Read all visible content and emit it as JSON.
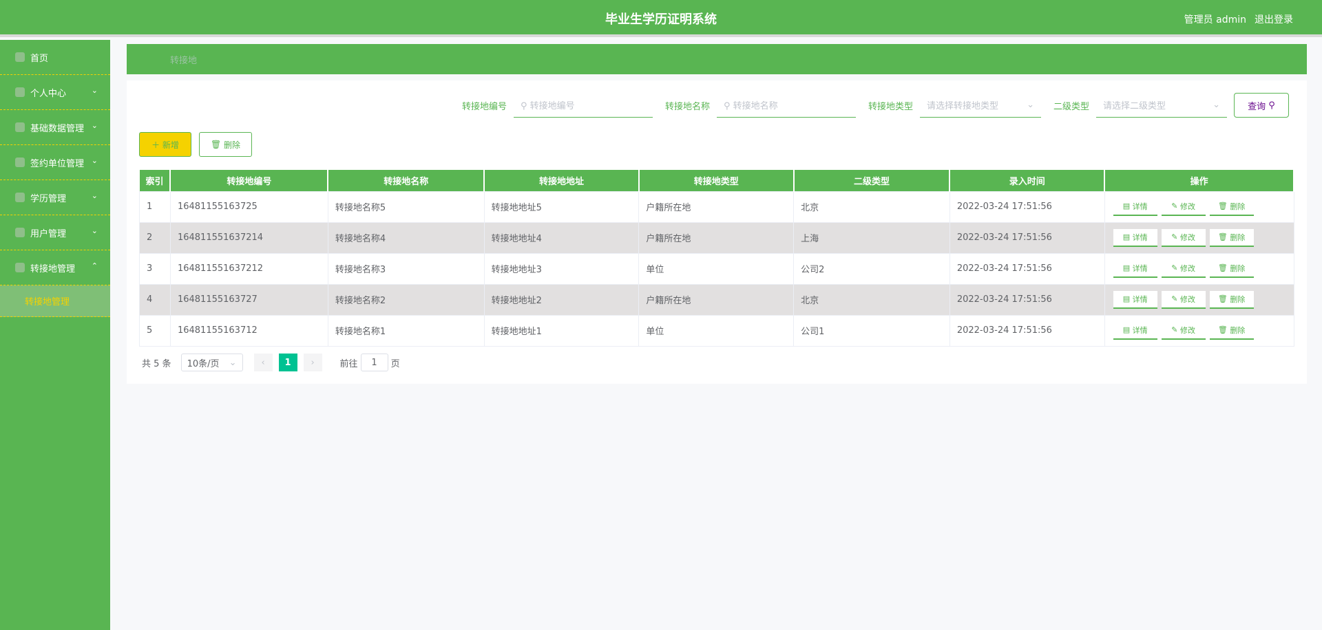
{
  "header": {
    "title": "毕业生学历证明系统",
    "user": "管理员 admin",
    "logout": "退出登录"
  },
  "sidebar": {
    "items": [
      {
        "label": "首页",
        "icon": "home-icon",
        "chevron": ""
      },
      {
        "label": "个人中心",
        "icon": "user-icon",
        "chevron": "⌄"
      },
      {
        "label": "基础数据管理",
        "icon": "info-icon",
        "chevron": "⌄"
      },
      {
        "label": "签约单位管理",
        "icon": "building-icon",
        "chevron": "⌄"
      },
      {
        "label": "学历管理",
        "icon": "graduation-icon",
        "chevron": "⌄"
      },
      {
        "label": "用户管理",
        "icon": "users-icon",
        "chevron": "⌄"
      },
      {
        "label": "转接地管理",
        "icon": "transfer-icon",
        "chevron": "⌃"
      }
    ],
    "sub_item": "转接地管理"
  },
  "breadcrumb": "转接地",
  "search": {
    "code_label": "转接地编号",
    "code_placeholder": "转接地编号",
    "name_label": "转接地名称",
    "name_placeholder": "转接地名称",
    "type_label": "转接地类型",
    "type_placeholder": "请选择转接地类型",
    "sub_label": "二级类型",
    "sub_placeholder": "请选择二级类型",
    "query": "查询"
  },
  "actions": {
    "add": "新增",
    "delete": "删除"
  },
  "table": {
    "headers": [
      "索引",
      "转接地编号",
      "转接地名称",
      "转接地地址",
      "转接地类型",
      "二级类型",
      "录入时间",
      "操作"
    ],
    "rows": [
      [
        "1",
        "16481155163725",
        "转接地名称5",
        "转接地地址5",
        "户籍所在地",
        "北京",
        "2022-03-24 17:51:56"
      ],
      [
        "2",
        "164811551637214",
        "转接地名称4",
        "转接地地址4",
        "户籍所在地",
        "上海",
        "2022-03-24 17:51:56"
      ],
      [
        "3",
        "164811551637212",
        "转接地名称3",
        "转接地地址3",
        "单位",
        "公司2",
        "2022-03-24 17:51:56"
      ],
      [
        "4",
        "16481155163727",
        "转接地名称2",
        "转接地地址2",
        "户籍所在地",
        "北京",
        "2022-03-24 17:51:56"
      ],
      [
        "5",
        "16481155163712",
        "转接地名称1",
        "转接地地址1",
        "单位",
        "公司1",
        "2022-03-24 17:51:56"
      ]
    ],
    "ops": [
      "详情",
      "修改",
      "删除"
    ]
  },
  "pagination": {
    "total": "共 5 条",
    "page_size": "10条/页",
    "current": "1",
    "goto": "前往",
    "goto_value": "1",
    "page_suffix": "页"
  },
  "colors": {
    "primary": "#59b552",
    "accent": "#f5d200",
    "page_active": "#00c292"
  }
}
